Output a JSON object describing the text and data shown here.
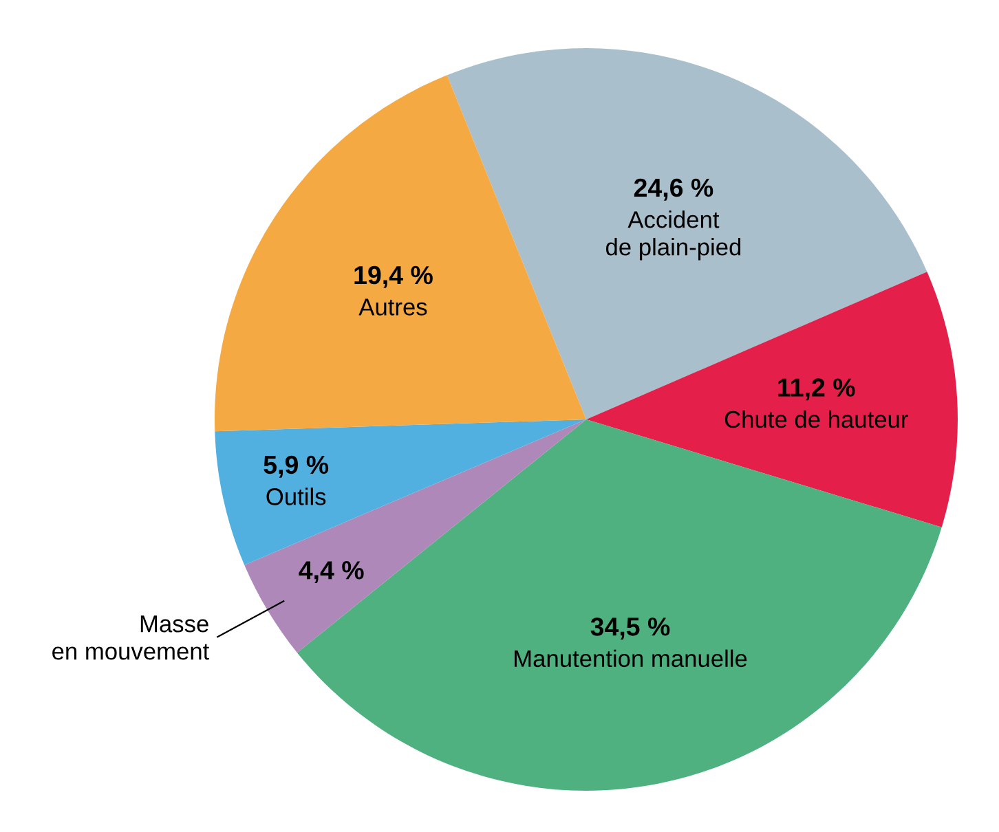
{
  "chart_data": {
    "type": "pie",
    "categories": [
      "Accident\nde plain-pied",
      "Chute de hauteur",
      "Manutention manuelle",
      "Masse\nen mouvement",
      "Outils",
      "Autres"
    ],
    "values": [
      24.6,
      11.2,
      34.5,
      4.4,
      5.9,
      19.4
    ],
    "colors": [
      "#a9bfcc",
      "#e31f4a",
      "#4fb180",
      "#ae88b9",
      "#52b0e0",
      "#f4a943"
    ],
    "value_labels": [
      "24,6 %",
      "11,2 %",
      "34,5 %",
      "4,4 %",
      "5,9 %",
      "19,4 %"
    ],
    "legend": false
  }
}
